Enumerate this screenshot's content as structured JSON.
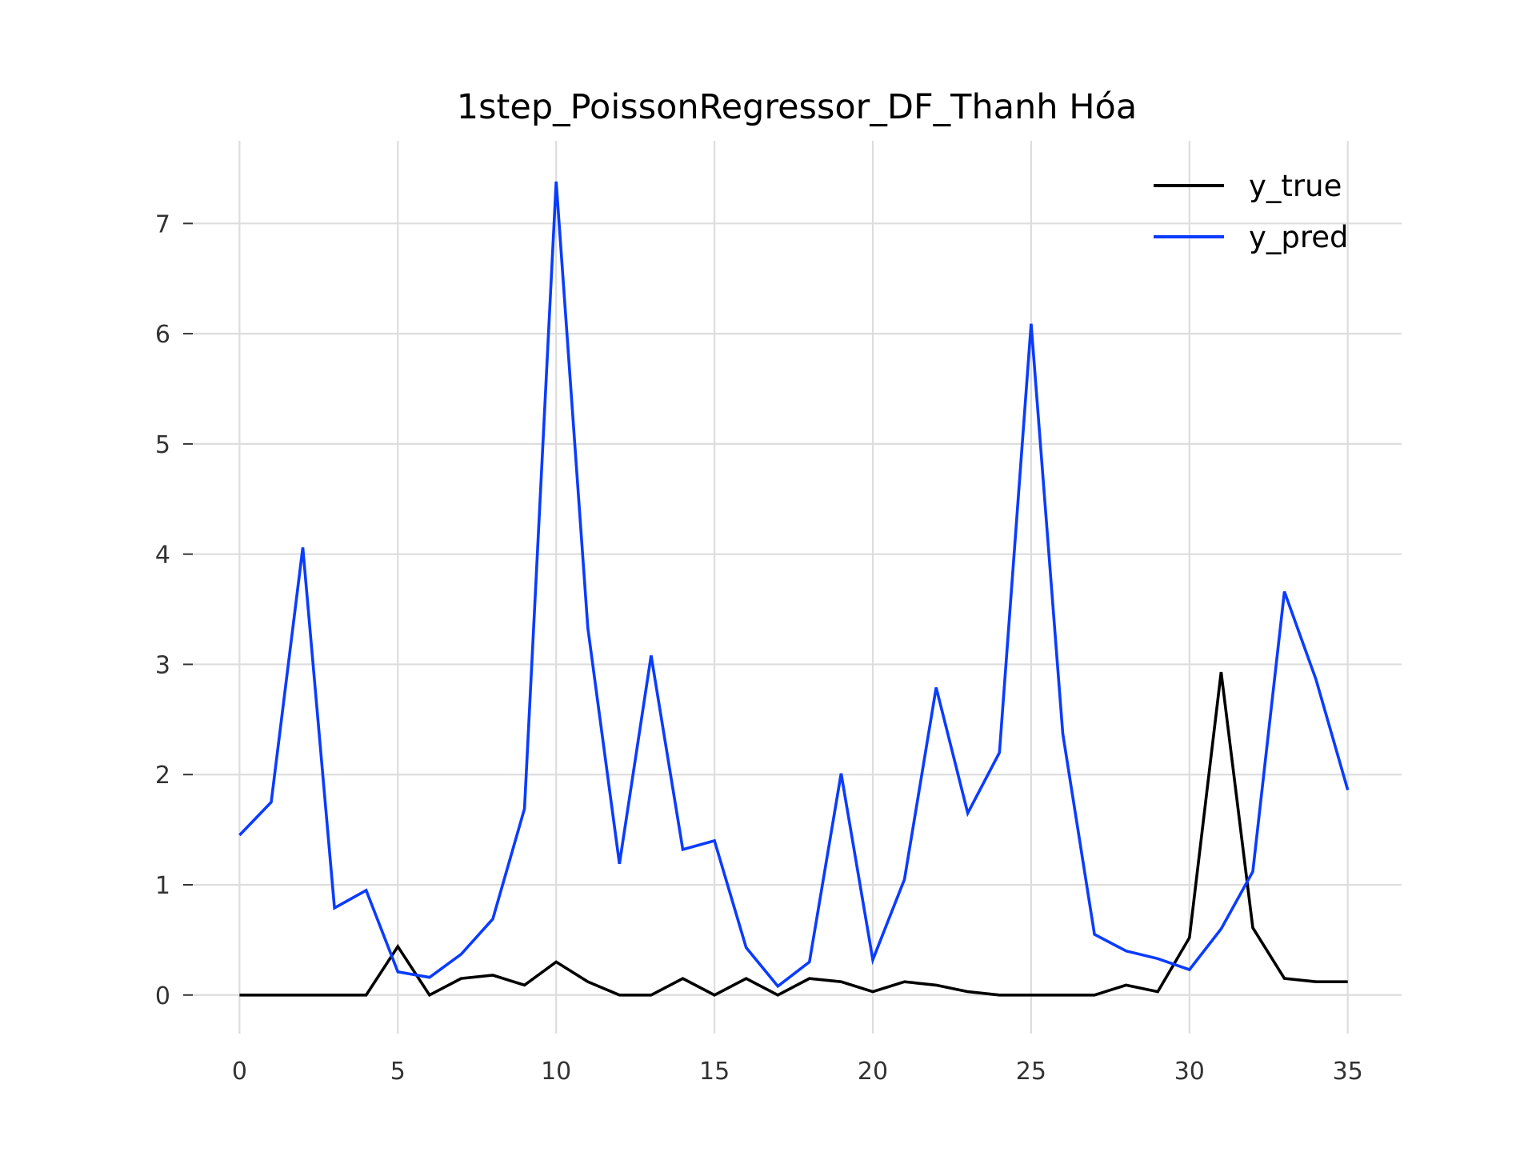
{
  "chart_data": {
    "type": "line",
    "title": "1step_PoissonRegressor_DF_Thanh Hóa",
    "xlabel": "",
    "ylabel": "",
    "xlim": [
      -1.5,
      36.7
    ],
    "ylim": [
      -0.35,
      7.75
    ],
    "xticks": [
      0,
      5,
      10,
      15,
      20,
      25,
      30,
      35
    ],
    "xtick_labels": [
      "0",
      "5",
      "10",
      "15",
      "20",
      "25",
      "30",
      "35"
    ],
    "yticks": [
      0,
      1,
      2,
      3,
      4,
      5,
      6,
      7
    ],
    "ytick_labels": [
      "0",
      "1",
      "2",
      "3",
      "4",
      "5",
      "6",
      "7"
    ],
    "grid": true,
    "legend_position": "top-right",
    "x": [
      0,
      1,
      2,
      3,
      4,
      5,
      6,
      7,
      8,
      9,
      10,
      11,
      12,
      13,
      14,
      15,
      16,
      17,
      18,
      19,
      20,
      21,
      22,
      23,
      24,
      25,
      26,
      27,
      28,
      29,
      30,
      31,
      32,
      33,
      34,
      35
    ],
    "series": [
      {
        "name": "y_true",
        "color": "#000000",
        "values": [
          0,
          0,
          0,
          0,
          0,
          0.44,
          0,
          0.15,
          0.18,
          0.09,
          0.3,
          0.12,
          0,
          0,
          0.15,
          0,
          0.15,
          0,
          0.15,
          0.12,
          0.03,
          0.12,
          0.09,
          0.03,
          0,
          0,
          0,
          0,
          0.09,
          0.03,
          0.52,
          2.93,
          0.61,
          0.15,
          0.12,
          0.12
        ]
      },
      {
        "name": "y_pred",
        "color": "#0a3cff",
        "values": [
          1.45,
          1.75,
          4.06,
          0.79,
          0.95,
          0.21,
          0.16,
          0.37,
          0.69,
          1.69,
          7.38,
          3.33,
          1.19,
          3.08,
          1.32,
          1.4,
          0.43,
          0.08,
          0.3,
          2.01,
          0.32,
          1.05,
          2.79,
          1.65,
          2.2,
          6.09,
          2.37,
          0.55,
          0.4,
          0.33,
          0.23,
          0.6,
          1.12,
          3.66,
          2.86,
          1.86
        ]
      }
    ]
  }
}
